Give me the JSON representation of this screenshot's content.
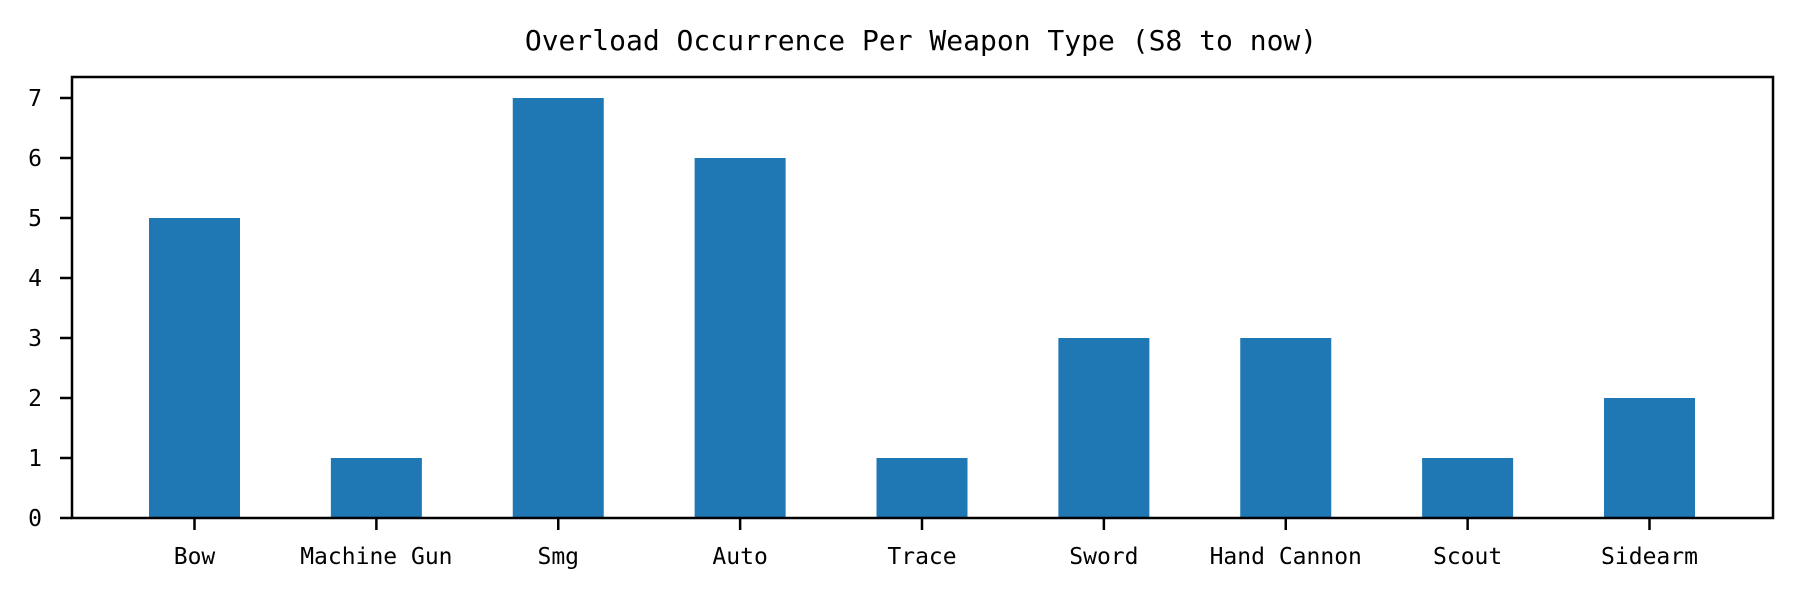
{
  "chart_data": {
    "type": "bar",
    "title": "Overload Occurrence Per Weapon Type (S8 to now)",
    "xlabel": "",
    "ylabel": "",
    "categories": [
      "Bow",
      "Machine Gun",
      "Smg",
      "Auto",
      "Trace",
      "Sword",
      "Hand Cannon",
      "Scout",
      "Sidearm"
    ],
    "values": [
      5,
      1,
      7,
      6,
      1,
      3,
      3,
      1,
      2
    ],
    "ylim": [
      0,
      7.35
    ],
    "yticks": [
      "0",
      "1",
      "2",
      "3",
      "4",
      "5",
      "6",
      "7"
    ],
    "bar_color": "#1f77b4",
    "grid": false,
    "legend": "none"
  }
}
